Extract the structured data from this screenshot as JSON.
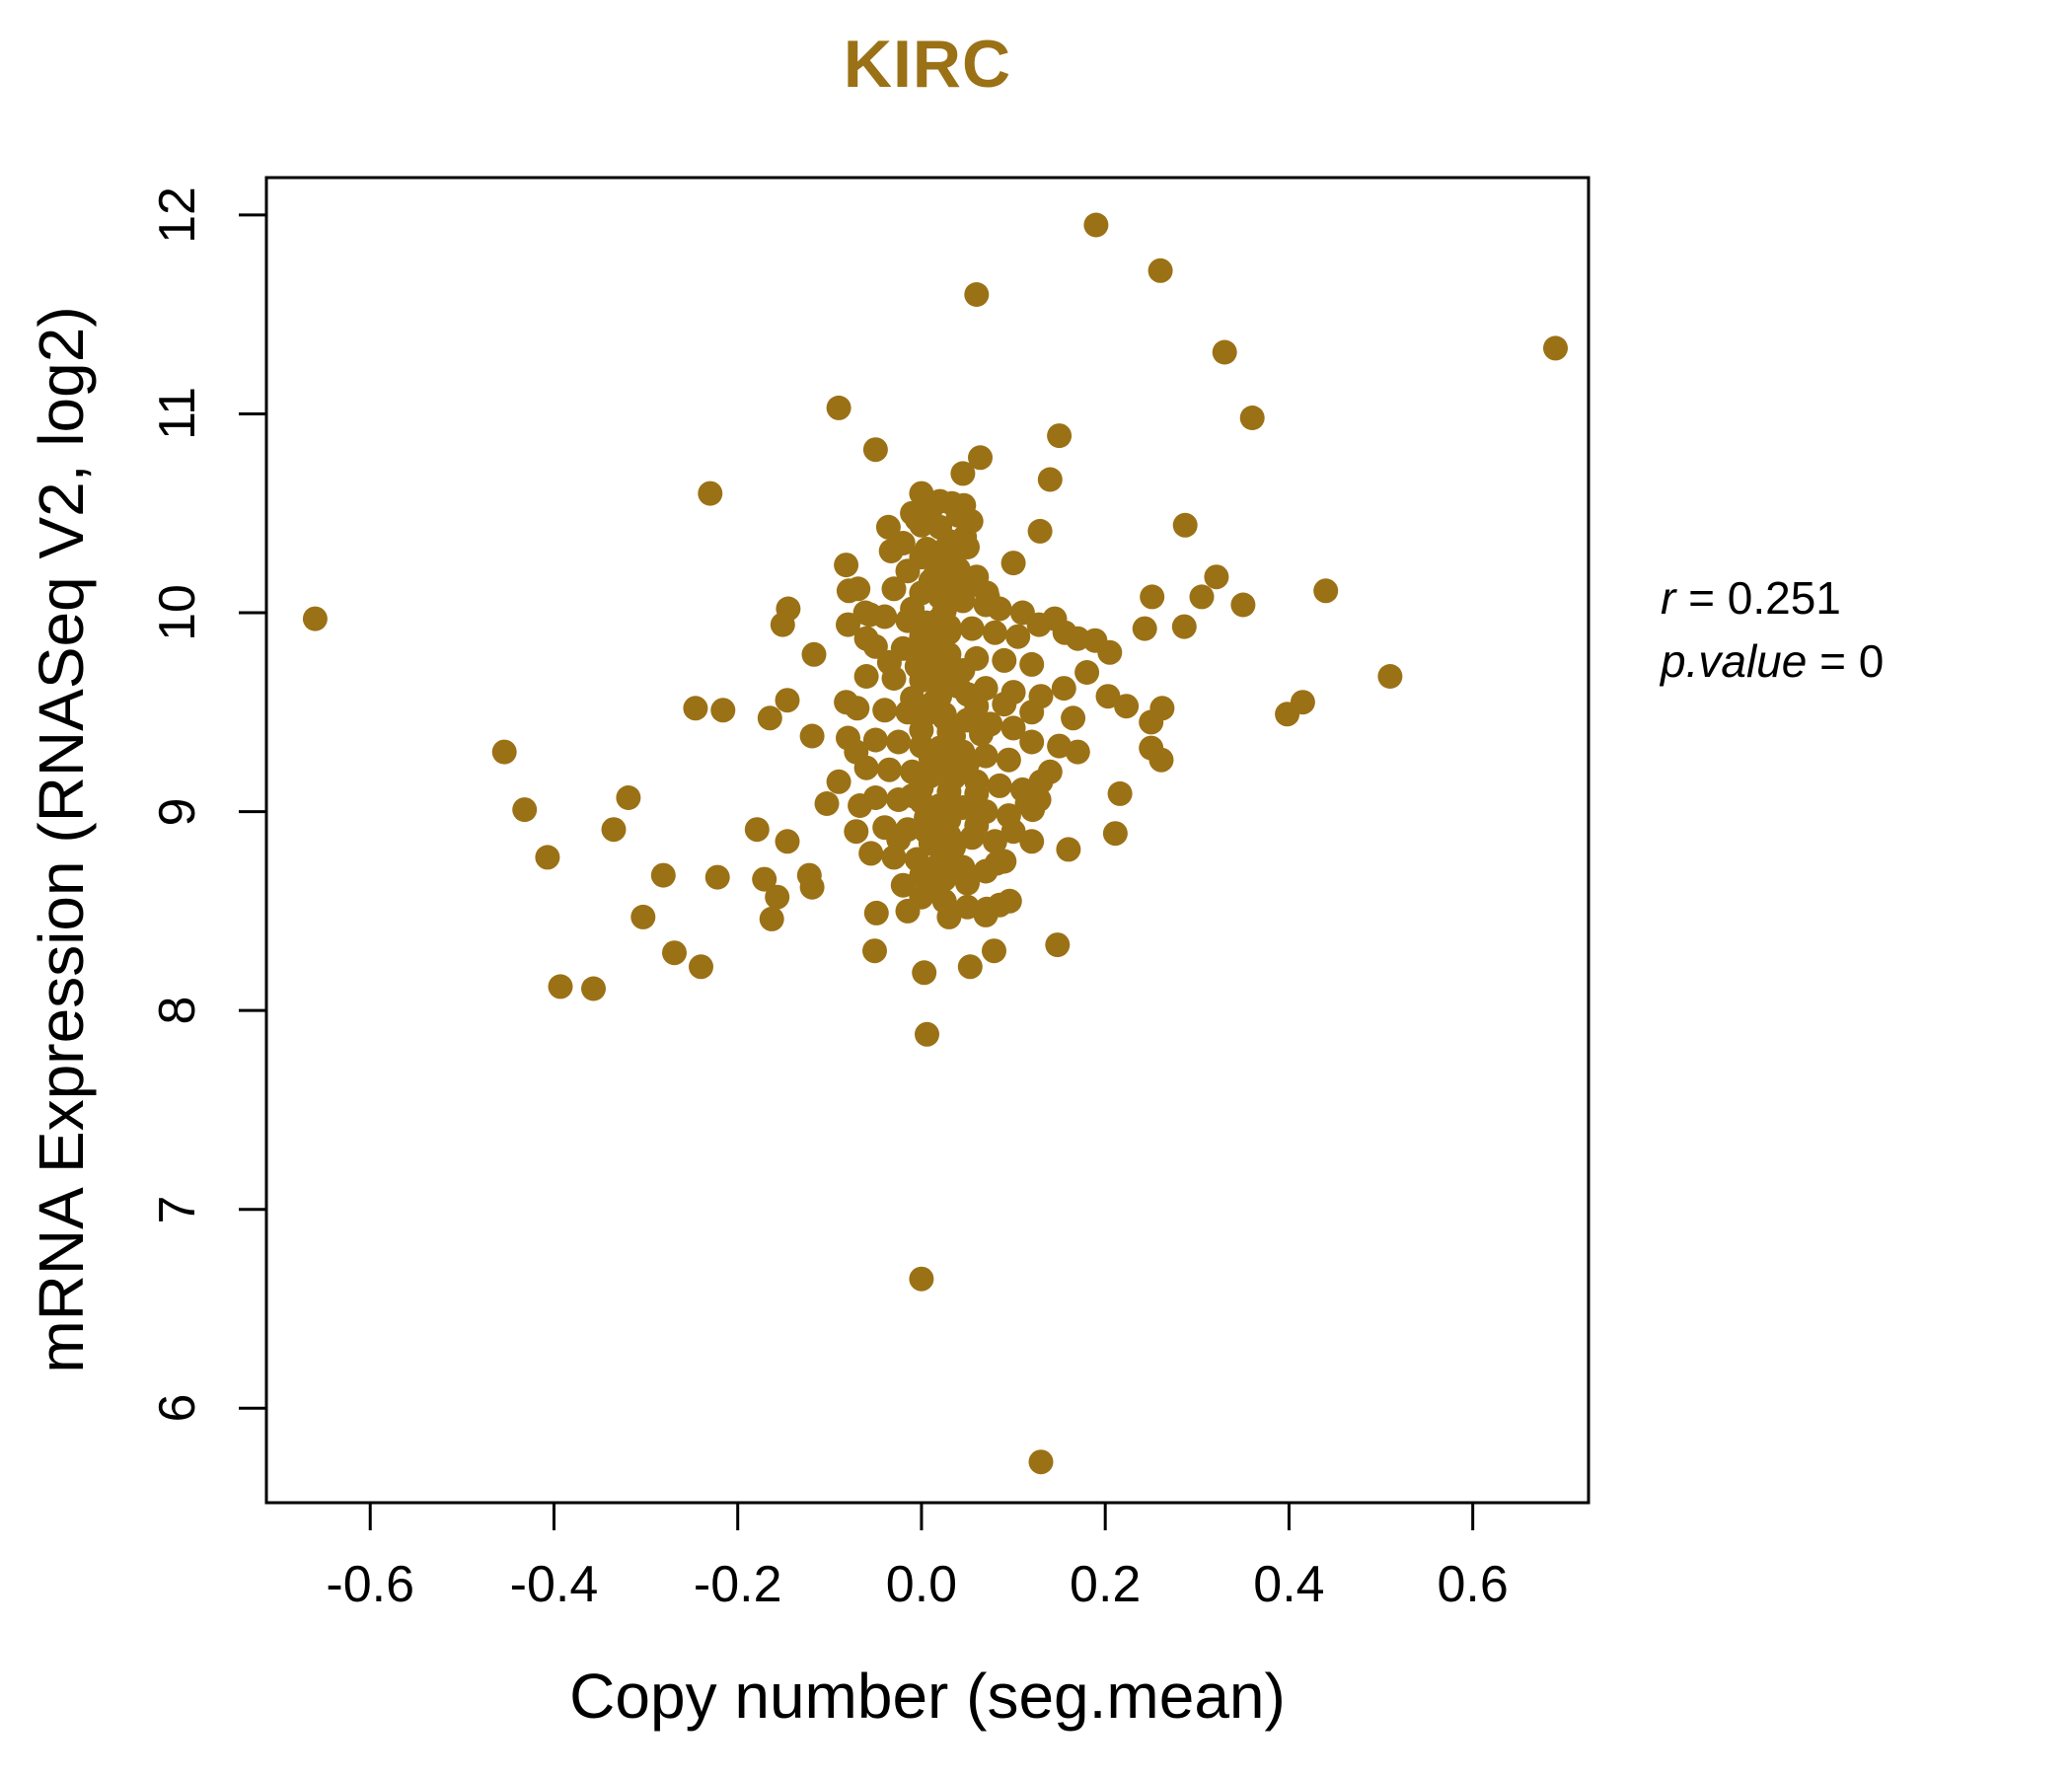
{
  "title": "KIRC",
  "annotation": {
    "r_var": "r",
    "r_rest": " = 0.251",
    "p_var": "p.value",
    "p_rest": " = 0"
  },
  "chart_data": {
    "type": "scatter",
    "title": "KIRC",
    "xlabel": "Copy number (seg.mean)",
    "ylabel": "mRNA Expression (RNASeq V2, log2)",
    "xlim": [
      -0.713,
      0.726
    ],
    "ylim": [
      5.525,
      12.188
    ],
    "grid": false,
    "legend": "none",
    "point_color": "#9B7116",
    "title_color": "#9B7116",
    "axis_color": "#000000",
    "correlation": {
      "r": 0.251,
      "p_value": 0
    },
    "xticks": [
      {
        "v": -0.6,
        "label": "-0.6"
      },
      {
        "v": -0.4,
        "label": "-0.4"
      },
      {
        "v": -0.2,
        "label": "-0.2"
      },
      {
        "v": 0.0,
        "label": "0.0"
      },
      {
        "v": 0.2,
        "label": "0.2"
      },
      {
        "v": 0.4,
        "label": "0.4"
      },
      {
        "v": 0.6,
        "label": "0.6"
      }
    ],
    "yticks": [
      {
        "v": 6,
        "label": "6"
      },
      {
        "v": 7,
        "label": "7"
      },
      {
        "v": 8,
        "label": "8"
      },
      {
        "v": 9,
        "label": "9"
      },
      {
        "v": 10,
        "label": "10"
      },
      {
        "v": 11,
        "label": "11"
      },
      {
        "v": 12,
        "label": "12"
      }
    ],
    "points": [
      [
        0.19,
        11.95
      ],
      [
        0.26,
        11.72
      ],
      [
        0.06,
        11.6
      ],
      [
        0.33,
        11.31
      ],
      [
        0.69,
        11.33
      ],
      [
        -0.09,
        11.03
      ],
      [
        0.36,
        10.98
      ],
      [
        0.15,
        10.89
      ],
      [
        -0.05,
        10.82
      ],
      [
        0.064,
        10.78
      ],
      [
        0.045,
        10.7
      ],
      [
        0.14,
        10.67
      ],
      [
        -0.23,
        10.6
      ],
      [
        0.0,
        10.6
      ],
      [
        0.02,
        10.56
      ],
      [
        0.033,
        10.55
      ],
      [
        0.046,
        10.54
      ],
      [
        -0.005,
        10.47
      ],
      [
        -0.036,
        10.43
      ],
      [
        0.054,
        10.46
      ],
      [
        0.047,
        10.38
      ],
      [
        0.129,
        10.41
      ],
      [
        0.287,
        10.44
      ],
      [
        -0.033,
        10.31
      ],
      [
        0.006,
        10.32
      ],
      [
        0.02,
        10.43
      ],
      [
        0.01,
        10.52
      ],
      [
        0.04,
        10.49
      ],
      [
        -0.01,
        10.5
      ],
      [
        0.0,
        10.44
      ],
      [
        0.03,
        10.36
      ],
      [
        -0.02,
        10.35
      ],
      [
        0.05,
        10.33
      ],
      [
        0.015,
        10.3
      ],
      [
        0.03,
        10.29
      ],
      [
        -0.082,
        10.24
      ],
      [
        0.1,
        10.25
      ],
      [
        0.025,
        10.26
      ],
      [
        0.0,
        10.28
      ],
      [
        0.02,
        10.25
      ],
      [
        0.04,
        10.22
      ],
      [
        -0.015,
        10.21
      ],
      [
        0.06,
        10.18
      ],
      [
        0.01,
        10.16
      ],
      [
        0.03,
        10.15
      ],
      [
        0.015,
        10.19
      ],
      [
        0.321,
        10.18
      ],
      [
        -0.069,
        10.12
      ],
      [
        0.071,
        10.1
      ],
      [
        -0.079,
        10.11
      ],
      [
        0.44,
        10.11
      ],
      [
        0.305,
        10.08
      ],
      [
        0.251,
        10.08
      ],
      [
        0.072,
        10.08
      ],
      [
        -0.03,
        10.12
      ],
      [
        0.05,
        10.13
      ],
      [
        0.0,
        10.1
      ],
      [
        0.02,
        10.08
      ],
      [
        0.045,
        10.06
      ],
      [
        0.07,
        10.04
      ],
      [
        -0.01,
        10.02
      ],
      [
        0.025,
        10.01
      ],
      [
        0.085,
        10.02
      ],
      [
        0.35,
        10.04
      ],
      [
        -0.145,
        10.02
      ],
      [
        -0.061,
        10.0
      ],
      [
        0.11,
        10.0
      ],
      [
        0.025,
        10.05
      ],
      [
        -0.66,
        9.97
      ],
      [
        -0.04,
        9.98
      ],
      [
        -0.015,
        9.96
      ],
      [
        0.005,
        9.95
      ],
      [
        0.03,
        9.93
      ],
      [
        0.055,
        9.92
      ],
      [
        0.08,
        9.9
      ],
      [
        0.0,
        9.88
      ],
      [
        0.02,
        9.86
      ],
      [
        -0.06,
        9.87
      ],
      [
        0.105,
        9.88
      ],
      [
        0.145,
        9.97
      ],
      [
        0.156,
        9.9
      ],
      [
        -0.056,
        9.99
      ],
      [
        -0.08,
        9.94
      ],
      [
        0.128,
        9.94
      ],
      [
        -0.151,
        9.94
      ],
      [
        0.243,
        9.92
      ],
      [
        0.286,
        9.93
      ],
      [
        0.17,
        9.87
      ],
      [
        0.189,
        9.86
      ],
      [
        0.02,
        9.97
      ],
      [
        0.03,
        9.9
      ],
      [
        -0.05,
        9.83
      ],
      [
        -0.02,
        9.82
      ],
      [
        0.005,
        9.8
      ],
      [
        0.03,
        9.79
      ],
      [
        0.06,
        9.77
      ],
      [
        0.09,
        9.76
      ],
      [
        0.12,
        9.74
      ],
      [
        -0.005,
        9.73
      ],
      [
        0.02,
        9.72
      ],
      [
        0.045,
        9.71
      ],
      [
        -0.035,
        9.75
      ],
      [
        -0.117,
        9.79
      ],
      [
        0.205,
        9.8
      ],
      [
        0.02,
        9.81
      ],
      [
        0.025,
        9.74
      ],
      [
        0.18,
        9.7
      ],
      [
        -0.06,
        9.68
      ],
      [
        -0.03,
        9.67
      ],
      [
        0.0,
        9.66
      ],
      [
        0.02,
        9.64
      ],
      [
        0.04,
        9.63
      ],
      [
        0.07,
        9.62
      ],
      [
        0.1,
        9.6
      ],
      [
        0.13,
        9.58
      ],
      [
        -0.01,
        9.57
      ],
      [
        0.015,
        9.56
      ],
      [
        0.05,
        9.59
      ],
      [
        0.155,
        9.62
      ],
      [
        0.51,
        9.68
      ],
      [
        0.203,
        9.58
      ],
      [
        -0.146,
        9.56
      ],
      [
        -0.082,
        9.55
      ],
      [
        0.415,
        9.55
      ],
      [
        0.03,
        9.65
      ],
      [
        0.02,
        9.58
      ],
      [
        -0.07,
        9.52
      ],
      [
        -0.04,
        9.51
      ],
      [
        -0.015,
        9.5
      ],
      [
        0.005,
        9.49
      ],
      [
        0.025,
        9.47
      ],
      [
        0.05,
        9.46
      ],
      [
        0.075,
        9.44
      ],
      [
        0.1,
        9.42
      ],
      [
        0.0,
        9.41
      ],
      [
        0.03,
        9.43
      ],
      [
        0.06,
        9.53
      ],
      [
        0.12,
        9.5
      ],
      [
        0.09,
        9.54
      ],
      [
        -0.246,
        9.52
      ],
      [
        -0.216,
        9.51
      ],
      [
        -0.165,
        9.47
      ],
      [
        0.223,
        9.53
      ],
      [
        0.262,
        9.52
      ],
      [
        0.25,
        9.45
      ],
      [
        0.398,
        9.49
      ],
      [
        -0.454,
        9.3
      ],
      [
        0.025,
        9.49
      ],
      [
        0.165,
        9.47
      ],
      [
        -0.08,
        9.37
      ],
      [
        -0.05,
        9.36
      ],
      [
        -0.025,
        9.35
      ],
      [
        0.0,
        9.33
      ],
      [
        0.02,
        9.32
      ],
      [
        0.045,
        9.3
      ],
      [
        0.07,
        9.28
      ],
      [
        0.095,
        9.26
      ],
      [
        0.01,
        9.27
      ],
      [
        0.035,
        9.38
      ],
      [
        0.065,
        9.39
      ],
      [
        0.12,
        9.35
      ],
      [
        0.15,
        9.33
      ],
      [
        -0.119,
        9.38
      ],
      [
        -0.071,
        9.3
      ],
      [
        0.25,
        9.32
      ],
      [
        0.261,
        9.26
      ],
      [
        0.03,
        9.4
      ],
      [
        0.02,
        9.31
      ],
      [
        0.17,
        9.3
      ],
      [
        -0.06,
        9.22
      ],
      [
        -0.035,
        9.21
      ],
      [
        -0.01,
        9.2
      ],
      [
        0.01,
        9.18
      ],
      [
        0.035,
        9.17
      ],
      [
        0.06,
        9.15
      ],
      [
        0.085,
        9.13
      ],
      [
        0.11,
        9.11
      ],
      [
        0.0,
        9.12
      ],
      [
        0.025,
        9.23
      ],
      [
        0.05,
        9.24
      ],
      [
        0.14,
        9.2
      ],
      [
        -0.09,
        9.15
      ],
      [
        0.216,
        9.09
      ],
      [
        0.025,
        9.21
      ],
      [
        0.13,
        9.15
      ],
      [
        -0.319,
        9.07
      ],
      [
        -0.05,
        9.07
      ],
      [
        -0.025,
        9.06
      ],
      [
        0.0,
        9.05
      ],
      [
        0.02,
        9.03
      ],
      [
        0.045,
        9.02
      ],
      [
        0.07,
        9.0
      ],
      [
        0.095,
        8.98
      ],
      [
        0.005,
        8.97
      ],
      [
        0.03,
        8.96
      ],
      [
        -0.01,
        9.08
      ],
      [
        0.06,
        9.09
      ],
      [
        0.115,
        9.04
      ],
      [
        -0.103,
        9.04
      ],
      [
        -0.067,
        9.03
      ],
      [
        0.121,
        9.01
      ],
      [
        0.128,
        9.06
      ],
      [
        -0.432,
        9.01
      ],
      [
        -0.335,
        8.91
      ],
      [
        0.03,
        9.1
      ],
      [
        0.02,
        8.99
      ],
      [
        -0.04,
        8.92
      ],
      [
        -0.015,
        8.91
      ],
      [
        0.005,
        8.9
      ],
      [
        0.03,
        8.88
      ],
      [
        0.055,
        8.87
      ],
      [
        0.08,
        8.85
      ],
      [
        0.01,
        8.84
      ],
      [
        0.035,
        8.82
      ],
      [
        -0.025,
        8.86
      ],
      [
        0.06,
        8.93
      ],
      [
        0.1,
        8.9
      ],
      [
        -0.179,
        8.91
      ],
      [
        -0.146,
        8.85
      ],
      [
        -0.071,
        8.9
      ],
      [
        0.211,
        8.89
      ],
      [
        0.16,
        8.81
      ],
      [
        0.025,
        8.89
      ],
      [
        0.12,
        8.85
      ],
      [
        -0.407,
        8.77
      ],
      [
        -0.03,
        8.77
      ],
      [
        -0.005,
        8.76
      ],
      [
        0.02,
        8.74
      ],
      [
        0.045,
        8.72
      ],
      [
        0.07,
        8.7
      ],
      [
        0.0,
        8.68
      ],
      [
        0.025,
        8.66
      ],
      [
        0.05,
        8.64
      ],
      [
        -0.02,
        8.63
      ],
      [
        0.09,
        8.75
      ],
      [
        0.01,
        8.62
      ],
      [
        -0.281,
        8.68
      ],
      [
        -0.222,
        8.67
      ],
      [
        -0.171,
        8.66
      ],
      [
        -0.122,
        8.68
      ],
      [
        -0.119,
        8.62
      ],
      [
        -0.055,
        8.79
      ],
      [
        0.082,
        8.74
      ],
      [
        0.03,
        8.78
      ],
      [
        0.02,
        8.67
      ],
      [
        0.0,
        8.57
      ],
      [
        0.025,
        8.55
      ],
      [
        0.05,
        8.52
      ],
      [
        -0.015,
        8.5
      ],
      [
        0.07,
        8.48
      ],
      [
        0.03,
        8.47
      ],
      [
        -0.157,
        8.57
      ],
      [
        -0.163,
        8.46
      ],
      [
        -0.049,
        8.49
      ],
      [
        -0.303,
        8.47
      ],
      [
        0.085,
        8.53
      ],
      [
        0.071,
        8.51
      ],
      [
        0.096,
        8.55
      ],
      [
        -0.393,
        8.12
      ],
      [
        -0.357,
        8.11
      ],
      [
        -0.269,
        8.29
      ],
      [
        -0.24,
        8.22
      ],
      [
        -0.051,
        8.3
      ],
      [
        0.003,
        8.19
      ],
      [
        0.053,
        8.22
      ],
      [
        0.079,
        8.3
      ],
      [
        0.148,
        8.33
      ],
      [
        0.006,
        7.88
      ],
      [
        0.0,
        6.65
      ],
      [
        0.13,
        5.73
      ]
    ]
  }
}
